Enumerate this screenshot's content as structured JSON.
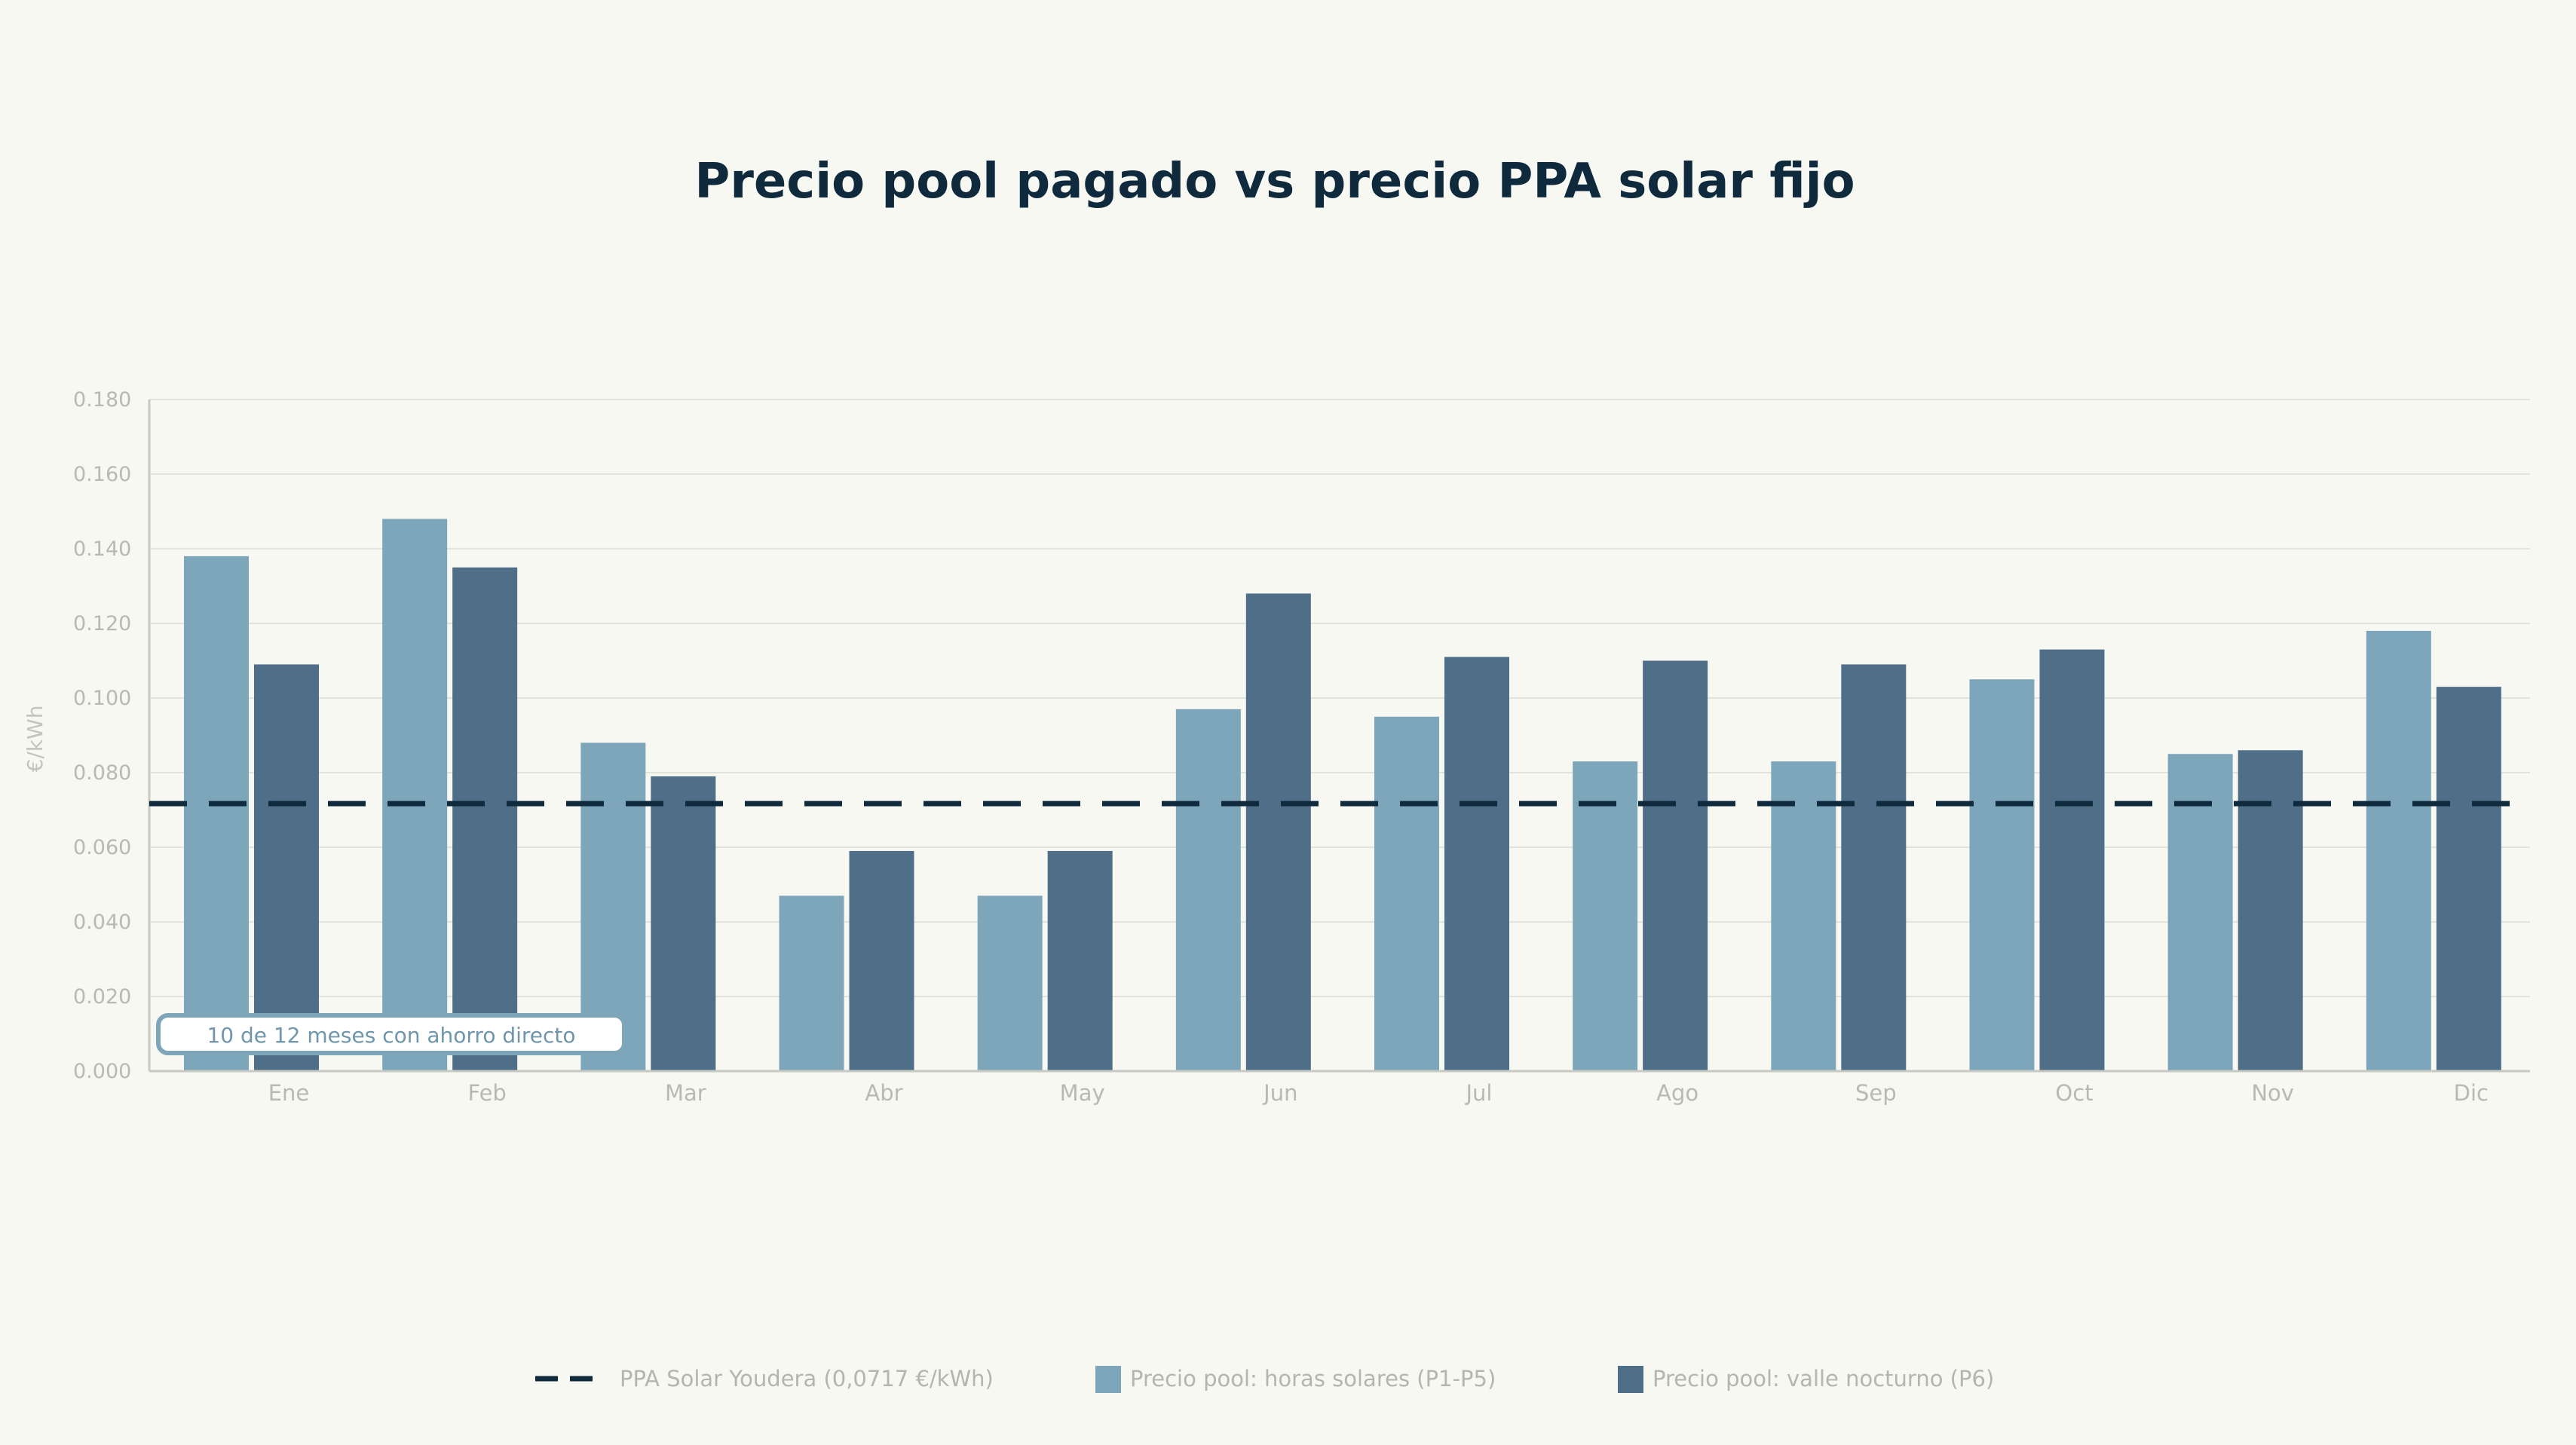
{
  "chart_data": {
    "type": "bar",
    "title": "Precio pool pagado vs precio PPA solar fijo",
    "xlabel": "",
    "ylabel": "€/kWh",
    "ylim": [
      0,
      0.18
    ],
    "yticks": [
      "0.000",
      "0.020",
      "0.040",
      "0.060",
      "0.080",
      "0.100",
      "0.120",
      "0.140",
      "0.160",
      "0.180"
    ],
    "grid": true,
    "categories": [
      "Ene",
      "Feb",
      "Mar",
      "Abr",
      "May",
      "Jun",
      "Jul",
      "Ago",
      "Sep",
      "Oct",
      "Nov",
      "Dic"
    ],
    "series": [
      {
        "name": "Precio pool: horas solares (P1-P5)",
        "color": "#7ea6ba",
        "values": [
          0.138,
          0.148,
          0.088,
          0.047,
          0.047,
          0.097,
          0.095,
          0.083,
          0.083,
          0.105,
          0.085,
          0.118
        ]
      },
      {
        "name": "Precio pool: valle nocturno (P6)",
        "color": "#4f6e87",
        "values": [
          0.109,
          0.135,
          0.079,
          0.059,
          0.059,
          0.128,
          0.111,
          0.11,
          0.109,
          0.113,
          0.086,
          0.103
        ]
      }
    ],
    "reference_line": {
      "name": "PPA Solar Youdera (0,0717 €/kWh)",
      "value": 0.0717,
      "color": "#0f2a3d",
      "style": "dashed"
    },
    "annotation": "10 de 12 meses con ahorro directo",
    "legend_position": "bottom"
  }
}
